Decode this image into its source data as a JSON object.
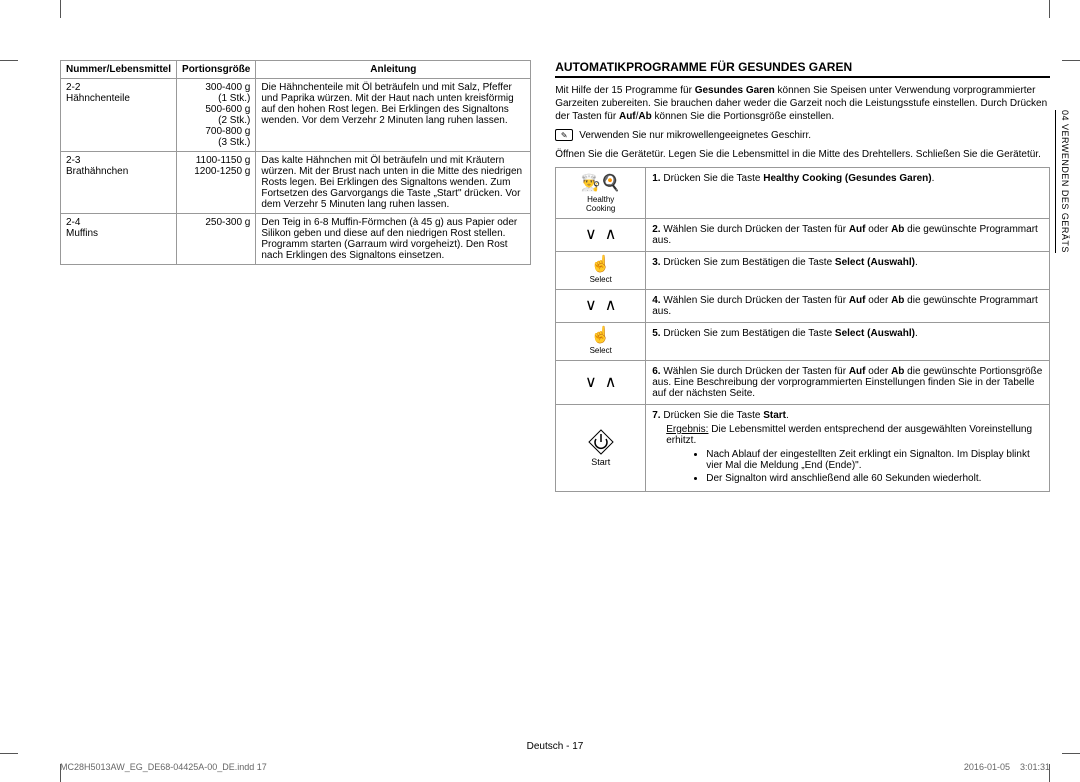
{
  "left_table": {
    "headers": [
      "Nummer/Lebensmittel",
      "Portionsgröße",
      "Anleitung"
    ],
    "rows": [
      {
        "num": "2-2\nHähnchenteile",
        "portion": "300-400 g\n(1 Stk.)\n500-600 g\n(2 Stk.)\n700-800 g\n(3 Stk.)",
        "instr": "Die Hähnchenteile mit Öl beträufeln und mit Salz, Pfeffer und Paprika würzen. Mit der Haut nach unten kreisförmig auf den hohen Rost legen. Bei Erklingen des Signaltons wenden. Vor dem Verzehr 2 Minuten lang ruhen lassen."
      },
      {
        "num": "2-3\nBrathähnchen",
        "portion": "1100-1150 g\n1200-1250 g",
        "instr": "Das kalte Hähnchen mit Öl beträufeln und mit Kräutern würzen.\nMit der Brust nach unten in die Mitte des niedrigen Rosts legen.\nBei Erklingen des Signaltons wenden. Zum Fortsetzen des Garvorgangs die Taste „Start\" drücken.\nVor dem Verzehr 5 Minuten lang ruhen lassen."
      },
      {
        "num": "2-4\nMuffins",
        "portion": "250-300 g",
        "instr": "Den Teig in 6-8 Muffin-Förmchen (à 45 g) aus Papier oder Silikon geben und diese auf den niedrigen Rost stellen. Programm starten (Garraum wird vorgeheizt).\nDen Rost nach Erklingen des Signaltons einsetzen."
      }
    ]
  },
  "right": {
    "heading": "AUTOMATIKPROGRAMME FÜR GESUNDES GAREN",
    "intro": "Mit Hilfe der 15 Programme für <b>Gesundes Garen</b> können Sie Speisen unter Verwendung vorprogrammierter Garzeiten zubereiten. Sie brauchen daher weder die Garzeit noch die Leistungsstufe einstellen. Durch Drücken der Tasten für <b>Auf</b>/<b>Ab</b> können Sie die Portionsgröße einstellen.",
    "hint": "Verwenden Sie nur mikrowellengeeignetes Geschirr.",
    "open": "Öffnen Sie die Gerätetür. Legen Sie die Lebensmittel in die Mitte des Drehtellers. Schließen Sie die Gerätetür.",
    "step1": "Drücken Sie die Taste <b>Healthy Cooking (Gesundes Garen)</b>.",
    "step2": "Wählen Sie durch Drücken der Tasten für <b>Auf</b> oder <b>Ab</b> die gewünschte Programmart aus.",
    "step3": "Drücken Sie zum Bestätigen die Taste <b>Select (Auswahl)</b>.",
    "step4": "Wählen Sie durch Drücken der Tasten für <b>Auf</b> oder <b>Ab</b> die gewünschte Programmart aus.",
    "step5": "Drücken Sie zum Bestätigen die Taste <b>Select (Auswahl)</b>.",
    "step6": "Wählen Sie durch Drücken der Tasten für <b>Auf</b> oder <b>Ab</b> die gewünschte Portionsgröße aus. Eine Beschreibung der vorprogrammierten Einstellungen finden Sie in der Tabelle auf der nächsten Seite.",
    "step7": "Drücken Sie die Taste <b>Start</b>.",
    "result_label": "Ergebnis:",
    "result_text": "Die Lebensmittel werden entsprechend der ausgewählten Voreinstellung erhitzt.",
    "bullet1": "Nach Ablauf der eingestellten Zeit erklingt ein Signalton. Im Display blinkt vier Mal die Meldung „End (Ende)\".",
    "bullet2": "Der Signalton wird anschließend alle 60 Sekunden wiederholt.",
    "icon_labels": {
      "healthy": "Healthy\nCooking",
      "select": "Select",
      "start": "Start"
    }
  },
  "side_label": "04  VERWENDEN DES GERÄTS",
  "footer_center": "Deutsch - 17",
  "footer_left": "MC28H5013AW_EG_DE68-04425A-00_DE.indd   17",
  "footer_right": "2016-01-05     3:01:31"
}
